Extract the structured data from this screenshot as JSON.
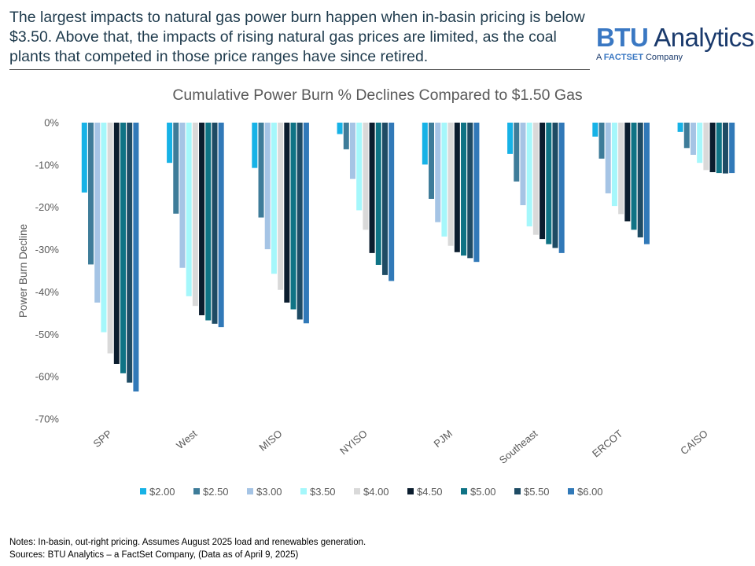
{
  "headline": "The largest impacts to natural gas power burn happen when in-basin pricing is below $3.50. Above that, the impacts of rising natural gas prices are limited, as the coal plants that competed in those price ranges have since retired.",
  "logo": {
    "brand": "BTU",
    "name": "Analytics",
    "sub_prefix": "A ",
    "sub_brand": "FACTSET",
    "sub_suffix": " Company"
  },
  "notes": [
    "Notes: In-basin, out-right pricing. Assumes August 2025 load and renewables generation.",
    "Sources: BTU Analytics – a FactSet Company, (Data as of April 9, 2025)"
  ],
  "chart_data": {
    "type": "bar",
    "title": "Cumulative Power Burn % Declines Compared to $1.50 Gas",
    "xlabel": "",
    "ylabel": "Power Burn Decline",
    "ylim": [
      -70,
      0
    ],
    "yticks": [
      0,
      -10,
      -20,
      -30,
      -40,
      -50,
      -60,
      -70
    ],
    "ytick_labels": [
      "0%",
      "-10%",
      "-20%",
      "-30%",
      "-40%",
      "-50%",
      "-60%",
      "-70%"
    ],
    "grid": false,
    "legend_position": "bottom",
    "categories": [
      "SPP",
      "West",
      "MISO",
      "NYISO",
      "PJM",
      "Southeast",
      "ERCOT",
      "CAISO"
    ],
    "series": [
      {
        "name": "$2.00",
        "color": "#17b2e6",
        "values": [
          -16.5,
          -9.5,
          -10.7,
          -2.7,
          -9.9,
          -7.4,
          -3.3,
          -2.2
        ]
      },
      {
        "name": "$2.50",
        "color": "#3e7c99",
        "values": [
          -33.5,
          -21.5,
          -22.4,
          -6.3,
          -18.0,
          -13.9,
          -8.5,
          -6.0
        ]
      },
      {
        "name": "$3.00",
        "color": "#a5c4e5",
        "values": [
          -42.5,
          -34.3,
          -29.9,
          -13.3,
          -23.5,
          -19.5,
          -16.7,
          -7.6
        ]
      },
      {
        "name": "$3.50",
        "color": "#a5f7fb",
        "values": [
          -49.5,
          -41.0,
          -35.7,
          -20.7,
          -26.9,
          -24.5,
          -19.7,
          -9.5
        ]
      },
      {
        "name": "$4.00",
        "color": "#d9d9d9",
        "values": [
          -54.5,
          -43.3,
          -39.5,
          -25.3,
          -29.1,
          -26.5,
          -21.6,
          -11.2
        ]
      },
      {
        "name": "$4.50",
        "color": "#0b1d2e",
        "values": [
          -57.0,
          -45.5,
          -42.5,
          -30.8,
          -30.6,
          -27.5,
          -23.3,
          -11.7
        ]
      },
      {
        "name": "$5.00",
        "color": "#0f7385",
        "values": [
          -59.2,
          -46.7,
          -44.1,
          -33.6,
          -31.4,
          -28.7,
          -25.3,
          -11.9
        ]
      },
      {
        "name": "$5.50",
        "color": "#1e4b64",
        "values": [
          -61.4,
          -47.5,
          -46.5,
          -36.0,
          -32.0,
          -29.6,
          -27.1,
          -12.0
        ]
      },
      {
        "name": "$6.00",
        "color": "#3179b8",
        "values": [
          -63.5,
          -48.3,
          -47.4,
          -37.4,
          -32.9,
          -30.8,
          -28.7,
          -11.9
        ]
      }
    ]
  }
}
